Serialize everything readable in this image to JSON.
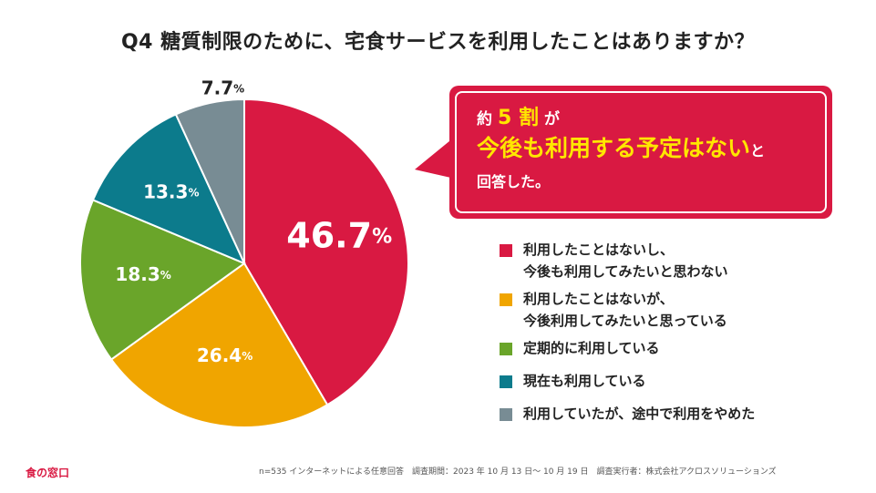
{
  "chart_data": {
    "type": "pie",
    "title": "Q4 糖質制限のために、宅食サービスを利用したことはありますか？",
    "categories": [
      "利用したことはないし、\n今後も利用してみたいと思わない",
      "利用したことはないが、\n今後利用してみたいと思っている",
      "定期的に利用している",
      "現在も利用している",
      "利用していたが、途中で利用をやめた"
    ],
    "values": [
      46.7,
      26.4,
      18.3,
      13.3,
      7.7
    ],
    "value_labels": [
      "46.7",
      "26.4",
      "18.3",
      "13.3",
      "7.7"
    ],
    "unit": "%",
    "colors": [
      "#d91942",
      "#f0a500",
      "#6aa52a",
      "#0c7b8c",
      "#788c94"
    ],
    "legend_position": "right"
  },
  "callout": {
    "line1_prefix": "約",
    "line1_highlight": "5 割",
    "line1_suffix": "が",
    "line2_highlight": "今後も利用する予定はない",
    "line2_suffix": "と",
    "line3": "回答した。"
  },
  "footer": {
    "logo": "食の窓口",
    "note": "n=535 インターネットによる任意回答　調査期間：2023 年 10 月 13 日～ 10 月 19 日　調査実行者：株式会社アクロスソリューションズ"
  }
}
